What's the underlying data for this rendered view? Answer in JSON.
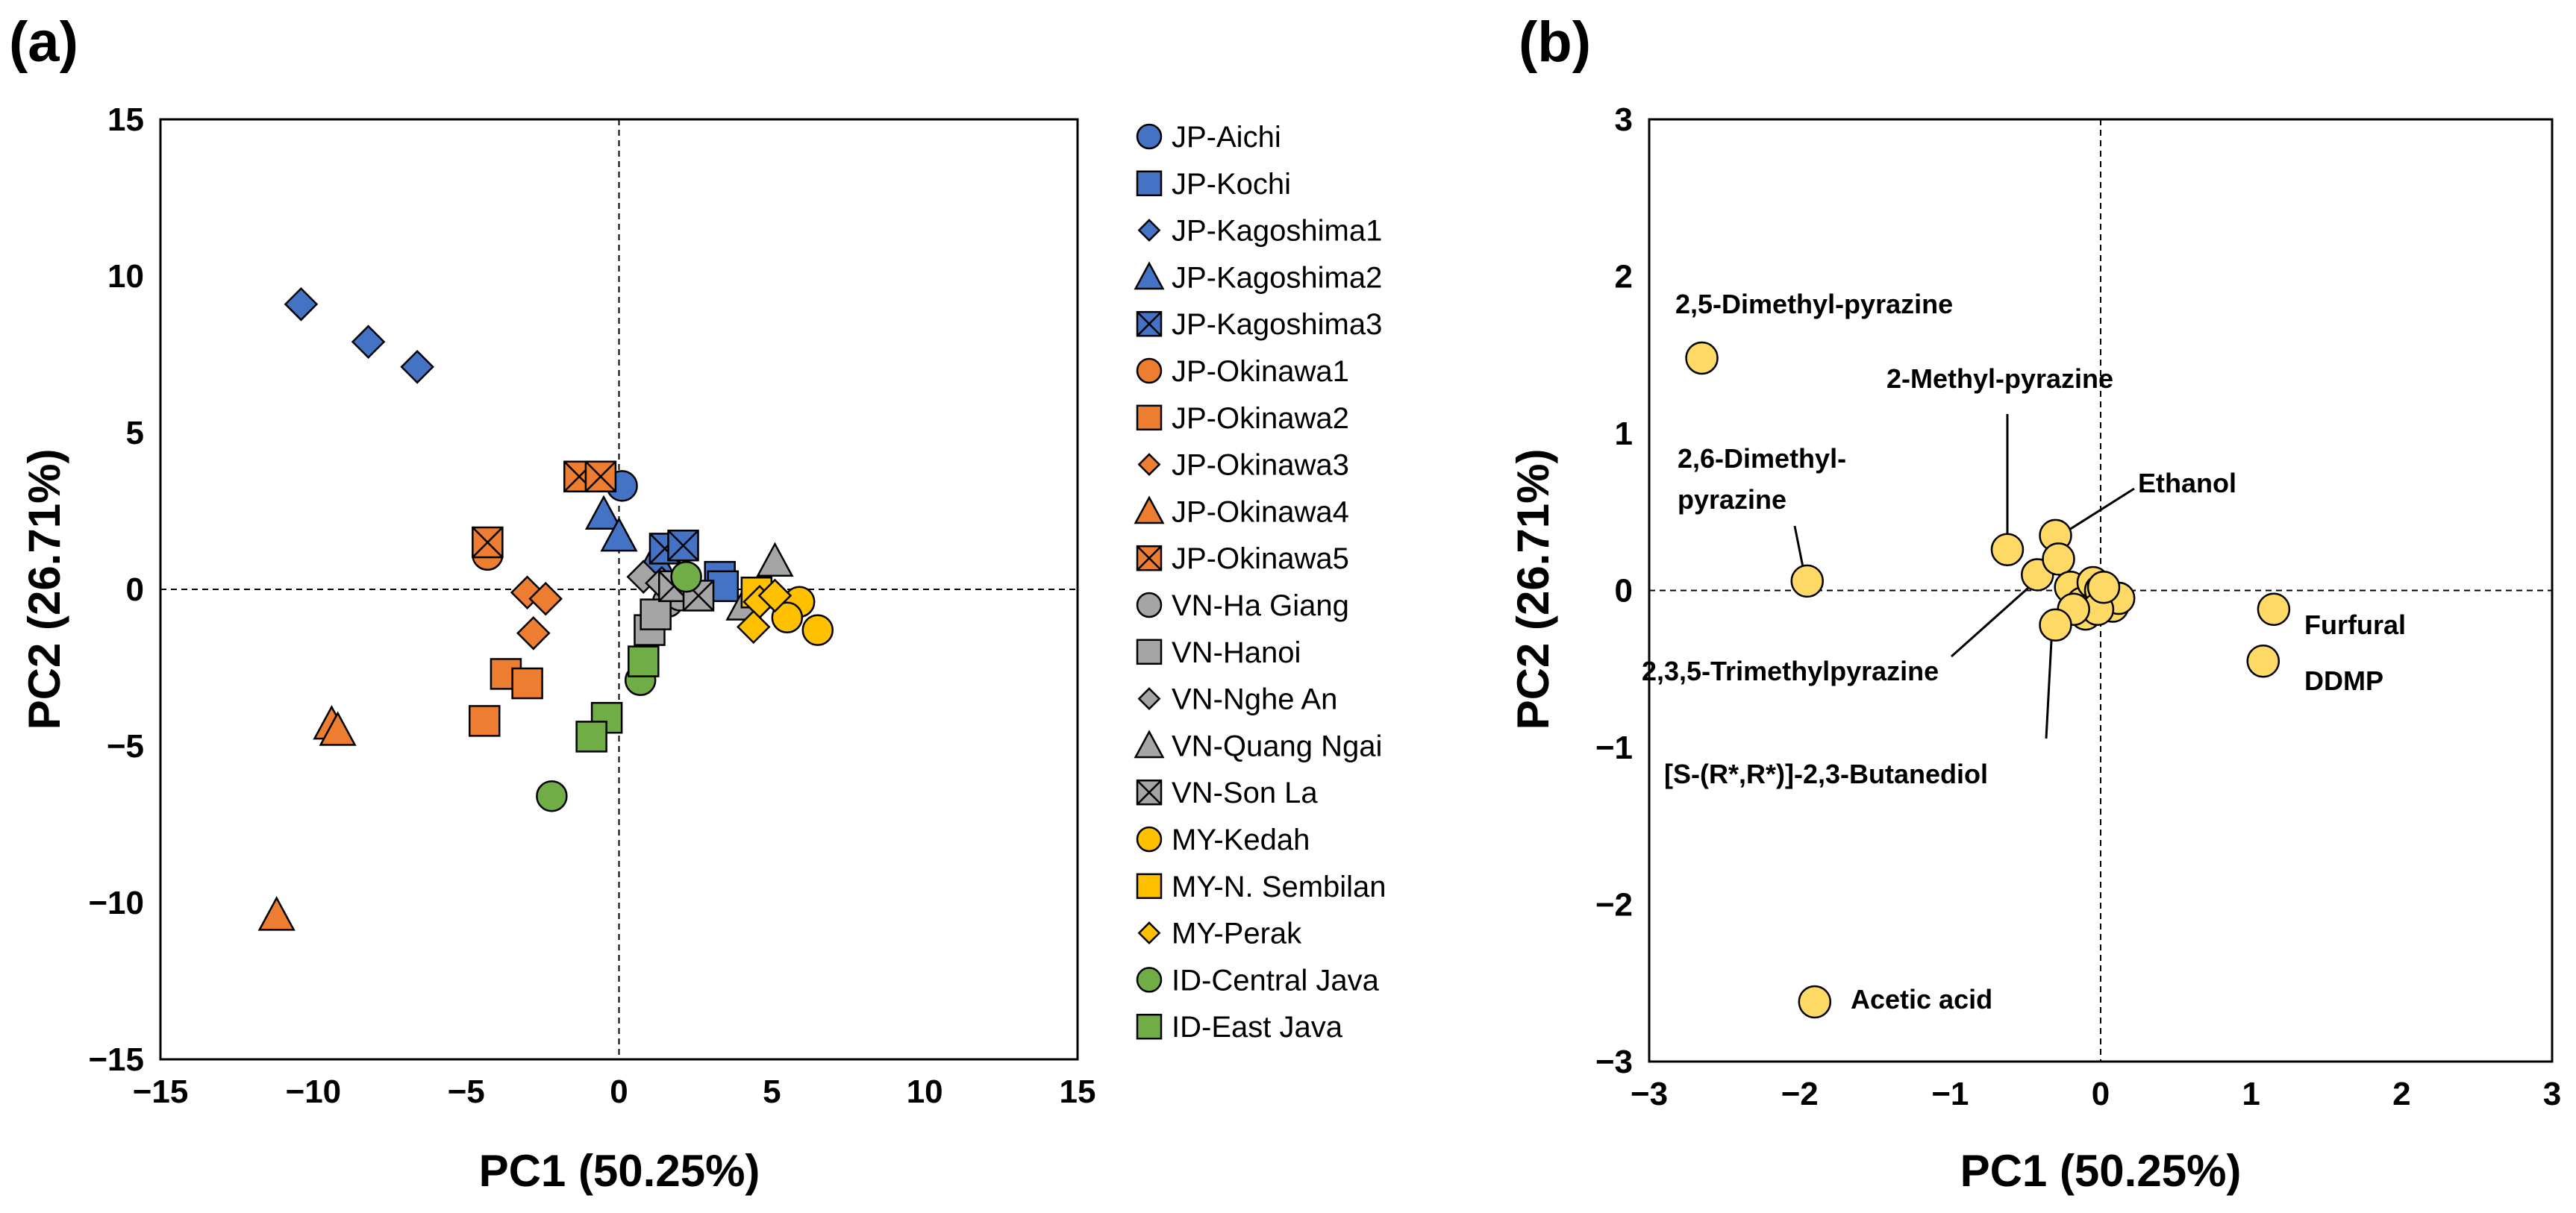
{
  "chart_data": [
    {
      "type": "scatter",
      "panel_label": "(a)",
      "xlabel": "PC1 (50.25%)",
      "ylabel": "PC2 (26.71%)",
      "xlim": [
        -15,
        15
      ],
      "ylim": [
        -15,
        15
      ],
      "xticks": [
        -15,
        -10,
        -5,
        0,
        5,
        10,
        15
      ],
      "yticks": [
        -15,
        -10,
        -5,
        0,
        5,
        10,
        15
      ],
      "xtick_labels": [
        "−15",
        "−10",
        "−5",
        "0",
        "5",
        "10",
        "15"
      ],
      "ytick_labels": [
        "−15",
        "−10",
        "−5",
        "0",
        "5",
        "10",
        "15"
      ],
      "zero_lines": "dashed",
      "legend_position": "right",
      "series": [
        {
          "name": "JP-Aichi",
          "marker": "circle",
          "color": "#4472C4",
          "x": [
            0.1
          ],
          "y": [
            3.3
          ]
        },
        {
          "name": "JP-Kochi",
          "marker": "square",
          "color": "#4472C4",
          "x": [
            3.3,
            3.4
          ],
          "y": [
            0.4,
            0.1
          ]
        },
        {
          "name": "JP-Kagoshima1",
          "marker": "diamond",
          "color": "#4472C4",
          "x": [
            -10.4,
            -8.2,
            -6.6
          ],
          "y": [
            9.1,
            7.9,
            7.1
          ]
        },
        {
          "name": "JP-Kagoshima2",
          "marker": "triangle",
          "color": "#4472C4",
          "x": [
            -0.5,
            0.0,
            1.2
          ],
          "y": [
            2.4,
            1.7,
            1.0
          ]
        },
        {
          "name": "JP-Kagoshima3",
          "marker": "xsquare",
          "color": "#4472C4",
          "x": [
            1.5,
            2.1
          ],
          "y": [
            1.3,
            1.4
          ]
        },
        {
          "name": "JP-Okinawa1",
          "marker": "circle",
          "color": "#ED7D31",
          "x": [
            -4.3,
            -1.0
          ],
          "y": [
            1.1,
            3.6
          ]
        },
        {
          "name": "JP-Okinawa2",
          "marker": "square",
          "color": "#ED7D31",
          "x": [
            -3.7,
            -3.0,
            -4.4
          ],
          "y": [
            -2.7,
            -3.0,
            -4.2
          ]
        },
        {
          "name": "JP-Okinawa3",
          "marker": "diamond",
          "color": "#ED7D31",
          "x": [
            -3.0,
            -2.4,
            -2.8
          ],
          "y": [
            -0.1,
            -0.3,
            -1.4
          ]
        },
        {
          "name": "JP-Okinawa4",
          "marker": "triangle",
          "color": "#ED7D31",
          "x": [
            -9.4,
            -9.2,
            -11.2
          ],
          "y": [
            -4.3,
            -4.5,
            -10.4
          ]
        },
        {
          "name": "JP-Okinawa5",
          "marker": "xsquare",
          "color": "#ED7D31",
          "x": [
            -4.3,
            -1.3,
            -0.6
          ],
          "y": [
            1.5,
            3.6,
            3.6
          ]
        },
        {
          "name": "VN-Ha Giang",
          "marker": "circle",
          "color": "#A5A5A5",
          "x": [
            1.6,
            2.0
          ],
          "y": [
            -0.4,
            -0.2
          ]
        },
        {
          "name": "VN-Hanoi",
          "marker": "square",
          "color": "#A5A5A5",
          "x": [
            1.0,
            1.2
          ],
          "y": [
            -1.3,
            -0.8
          ]
        },
        {
          "name": "VN-Nghe An",
          "marker": "diamond",
          "color": "#A5A5A5",
          "x": [
            0.8,
            1.4
          ],
          "y": [
            0.4,
            0.2
          ]
        },
        {
          "name": "VN-Quang Ngai",
          "marker": "triangle",
          "color": "#A5A5A5",
          "x": [
            5.1,
            4.1
          ],
          "y": [
            0.9,
            -0.5
          ]
        },
        {
          "name": "VN-Son La",
          "marker": "xsquare",
          "color": "#A5A5A5",
          "x": [
            1.8,
            2.6
          ],
          "y": [
            0.1,
            -0.2
          ]
        },
        {
          "name": "MY-Kedah",
          "marker": "circle",
          "color": "#FFC000",
          "x": [
            5.9,
            6.5,
            5.5
          ],
          "y": [
            -0.4,
            -1.3,
            -0.9
          ]
        },
        {
          "name": "MY-N. Sembilan",
          "marker": "square",
          "color": "#FFC000",
          "x": [
            4.5
          ],
          "y": [
            -0.1
          ]
        },
        {
          "name": "MY-Perak",
          "marker": "diamond",
          "color": "#FFC000",
          "x": [
            4.6,
            5.1,
            4.4
          ],
          "y": [
            -0.4,
            -0.2,
            -1.2
          ]
        },
        {
          "name": "ID-Central Java",
          "marker": "circle",
          "color": "#70AD47",
          "x": [
            2.2,
            0.7,
            -2.2
          ],
          "y": [
            0.4,
            -2.9,
            -6.6
          ]
        },
        {
          "name": "ID-East Java",
          "marker": "square",
          "color": "#70AD47",
          "x": [
            0.8,
            -0.4,
            -0.9
          ],
          "y": [
            -2.3,
            -4.1,
            -4.7
          ]
        }
      ]
    },
    {
      "type": "scatter",
      "panel_label": "(b)",
      "xlabel": "PC1 (50.25%)",
      "ylabel": "PC2 (26.71%)",
      "xlim": [
        -3,
        3
      ],
      "ylim": [
        -3,
        3
      ],
      "xticks": [
        -3,
        -2,
        -1,
        0,
        1,
        2,
        3
      ],
      "yticks": [
        -3,
        -2,
        -1,
        0,
        1,
        2,
        3
      ],
      "xtick_labels": [
        "−3",
        "−2",
        "−1",
        "0",
        "1",
        "2",
        "3"
      ],
      "ytick_labels": [
        "−3",
        "−2",
        "−1",
        "0",
        "1",
        "2",
        "3"
      ],
      "zero_lines": "dashed",
      "marker": "circle",
      "marker_color": "#FFD966",
      "points": {
        "x": [
          -2.65,
          -1.95,
          -1.9,
          -0.62,
          -0.3,
          -0.42,
          -0.28,
          -0.2,
          -0.12,
          -0.05,
          0.0,
          0.04,
          0.08,
          0.12,
          -0.1,
          -0.02,
          0.02,
          -0.18,
          -0.3,
          1.15,
          1.08
        ],
        "y": [
          1.48,
          0.06,
          -2.62,
          0.26,
          0.35,
          0.1,
          0.2,
          0.02,
          -0.08,
          0.05,
          0.0,
          -0.02,
          -0.1,
          -0.05,
          -0.15,
          -0.12,
          0.02,
          -0.12,
          -0.22,
          -0.12,
          -0.45
        ]
      },
      "annotations": [
        {
          "text": "2,5-Dimethyl-pyrazine"
        },
        {
          "text": "2-Methyl-pyrazine"
        },
        {
          "text": "2,6-Dimethyl-"
        },
        {
          "text": "pyrazine"
        },
        {
          "text": "Ethanol"
        },
        {
          "text": "Furfural"
        },
        {
          "text": "DDMP"
        },
        {
          "text": "2,3,5-Trimethylpyrazine"
        },
        {
          "text": "[S-(R*,R*)]-2,3-Butanediol"
        },
        {
          "text": "Acetic acid"
        }
      ]
    }
  ]
}
